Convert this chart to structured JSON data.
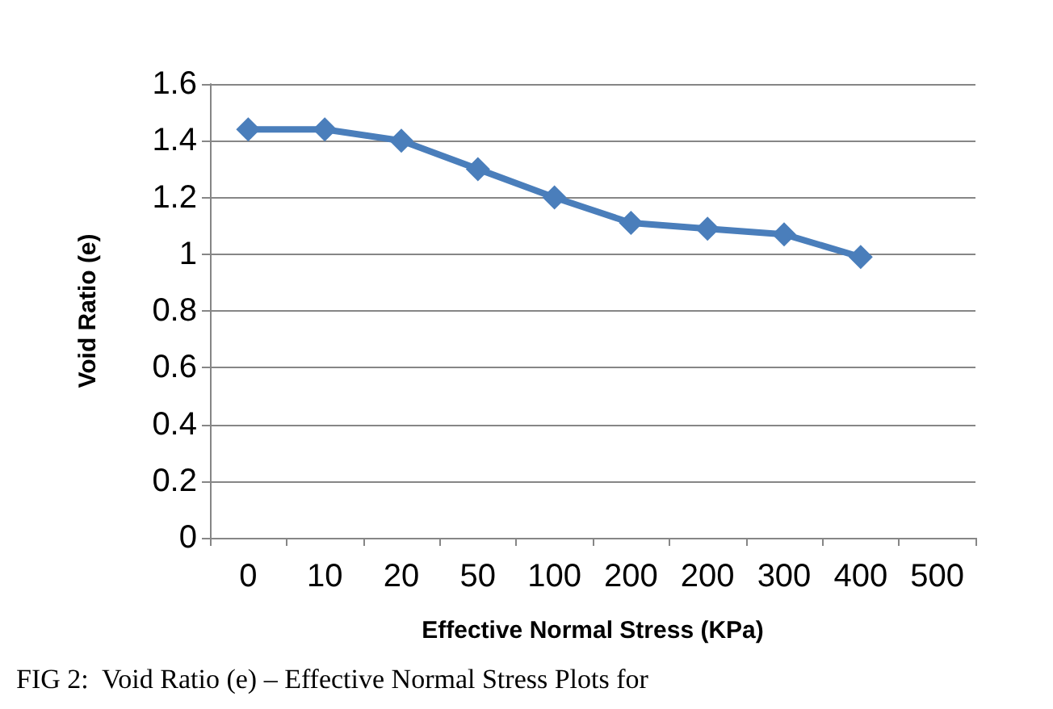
{
  "chart_data": {
    "type": "line",
    "xlabel": "Effective Normal Stress (KPa)",
    "ylabel": "Void Ratio (e)",
    "categories": [
      "0",
      "10",
      "20",
      "50",
      "100",
      "200",
      "200",
      "300",
      "400",
      "500"
    ],
    "series": [
      {
        "color": "#4a7ebb",
        "values": [
          1.44,
          1.44,
          1.4,
          1.3,
          1.2,
          1.11,
          1.09,
          1.07,
          0.99,
          null
        ]
      }
    ],
    "ylim": [
      0,
      1.6
    ],
    "yticks": [
      0,
      0.2,
      0.4,
      0.6,
      0.8,
      1,
      1.2,
      1.4,
      1.6
    ],
    "grid": "y",
    "marker": "diamond",
    "line_style": "solid",
    "annotations": [
      "FIG 2:  Void Ratio (e) – Effective Normal Stress Plots for"
    ]
  }
}
